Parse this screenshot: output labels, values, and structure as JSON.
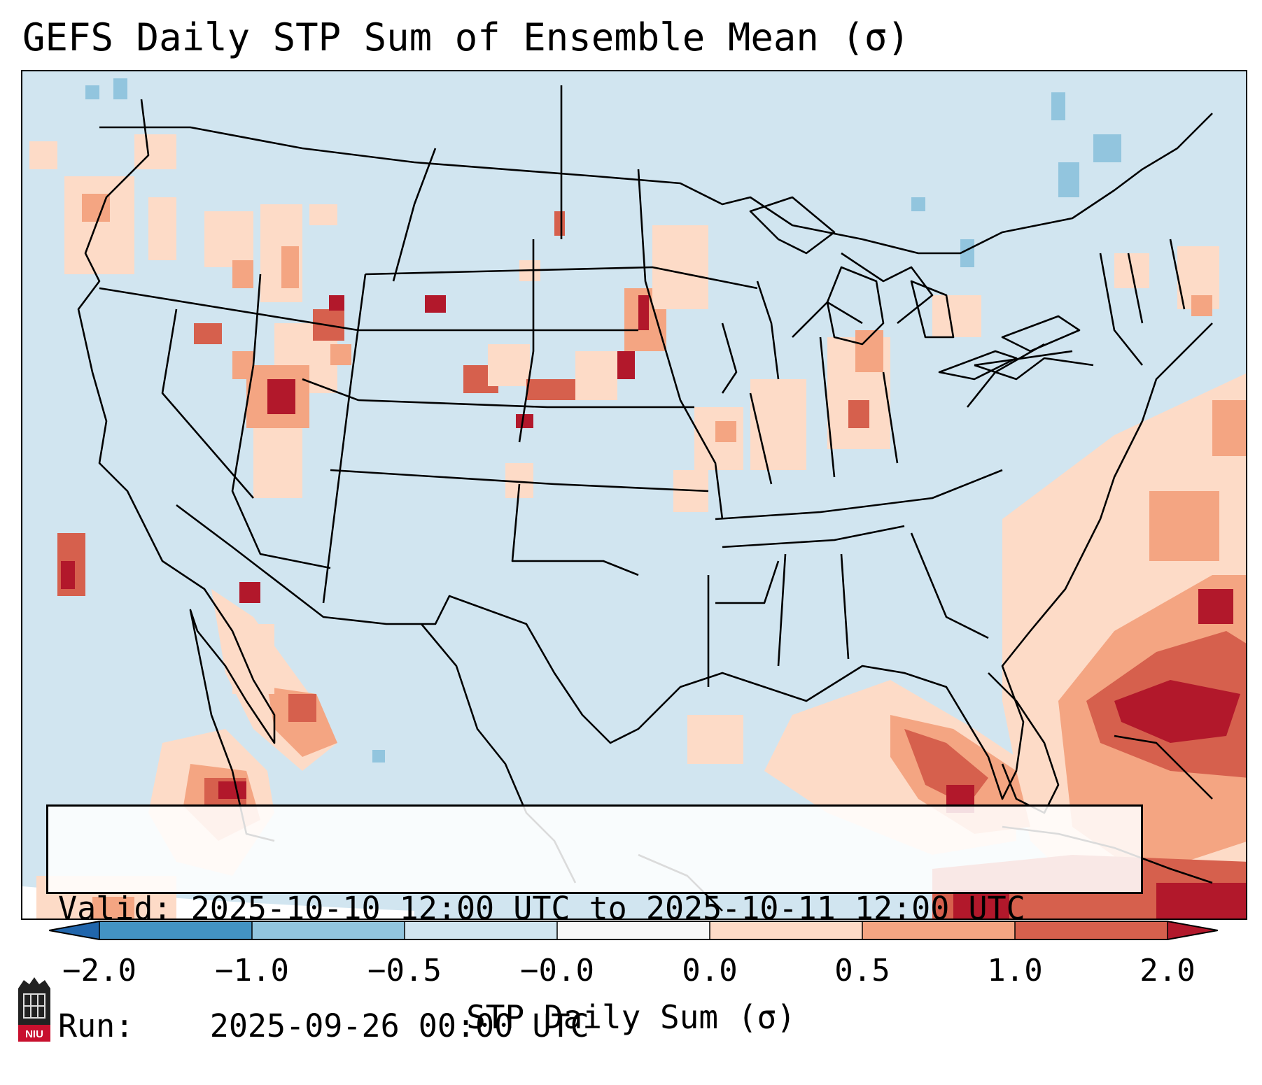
{
  "title": "GEFS Daily STP Sum of Ensemble Mean (σ)",
  "info": {
    "valid_label": "Valid:",
    "valid_value": "2025-10-10 12:00 UTC to 2025-10-11 12:00 UTC",
    "run_label": "Run:",
    "run_value": "2025-09-26 00:00 UTC"
  },
  "colorbar": {
    "label": "STP Daily Sum (σ)",
    "ticks": [
      "−2.0",
      "−1.0",
      "−0.5",
      "−0.0",
      "0.0",
      "0.5",
      "1.0",
      "2.0"
    ],
    "colors": [
      "#2166ac",
      "#4393c3",
      "#92c5de",
      "#d1e5f0",
      "#f7f7f7",
      "#fddbc7",
      "#f4a582",
      "#d6604d",
      "#b2182b"
    ]
  },
  "logo": {
    "text": "NIU"
  }
}
